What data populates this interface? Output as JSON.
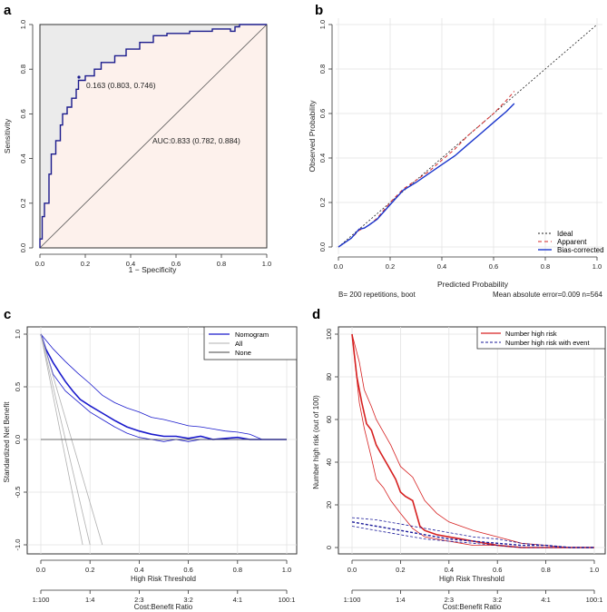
{
  "chart_data": [
    {
      "panel": "a",
      "type": "line",
      "title": "",
      "xlabel": "1 − Specificity",
      "ylabel": "Sensitivity",
      "xlim": [
        0,
        1
      ],
      "ylim": [
        0,
        1
      ],
      "xticks": [
        "0.0",
        "0.2",
        "0.4",
        "0.6",
        "0.8",
        "1.0"
      ],
      "yticks": [
        "0.0",
        "0.2",
        "0.4",
        "0.6",
        "0.8",
        "1.0"
      ],
      "annotations": [
        "0.163 (0.803, 0.746)",
        "AUC:0.833 (0.782, 0.884)"
      ],
      "series": [
        {
          "name": "ROC",
          "color": "#1a1a8c",
          "x": [
            0,
            0,
            0.01,
            0.01,
            0.02,
            0.02,
            0.04,
            0.04,
            0.05,
            0.05,
            0.07,
            0.07,
            0.09,
            0.09,
            0.1,
            0.1,
            0.12,
            0.12,
            0.14,
            0.14,
            0.16,
            0.16,
            0.17,
            0.17,
            0.2,
            0.2,
            0.24,
            0.24,
            0.27,
            0.27,
            0.33,
            0.33,
            0.38,
            0.38,
            0.44,
            0.44,
            0.5,
            0.5,
            0.56,
            0.56,
            0.66,
            0.66,
            0.76,
            0.76,
            0.84,
            0.84,
            0.86,
            0.86,
            0.88,
            0.88,
            0.9,
            0.9,
            1.0
          ],
          "y": [
            0,
            0.04,
            0.04,
            0.14,
            0.14,
            0.2,
            0.2,
            0.33,
            0.33,
            0.42,
            0.42,
            0.48,
            0.48,
            0.55,
            0.55,
            0.6,
            0.6,
            0.63,
            0.63,
            0.67,
            0.67,
            0.71,
            0.71,
            0.75,
            0.75,
            0.77,
            0.77,
            0.8,
            0.8,
            0.83,
            0.83,
            0.86,
            0.86,
            0.89,
            0.89,
            0.92,
            0.92,
            0.95,
            0.95,
            0.96,
            0.96,
            0.97,
            0.97,
            0.98,
            0.98,
            0.97,
            0.97,
            0.99,
            0.99,
            1.0,
            1.0,
            1.0,
            1.0
          ]
        },
        {
          "name": "Reference",
          "color": "#555555",
          "x": [
            0,
            1
          ],
          "y": [
            0,
            1
          ]
        }
      ]
    },
    {
      "panel": "b",
      "type": "line",
      "xlabel": "Predicted Probability",
      "ylabel": "Observed Probability",
      "xlim": [
        0,
        1
      ],
      "ylim": [
        0,
        1
      ],
      "xticks": [
        "0.0",
        "0.2",
        "0.4",
        "0.6",
        "0.8",
        "1.0"
      ],
      "yticks": [
        "0.0",
        "0.2",
        "0.4",
        "0.6",
        "0.8",
        "1.0"
      ],
      "legend": [
        "Ideal",
        "Apparent",
        "Bias-corrected"
      ],
      "footer_left": "B= 200 repetitions, boot",
      "footer_right": "Mean absolute error=0.009 n=564",
      "series": [
        {
          "name": "Ideal",
          "color": "#222222",
          "x": [
            0,
            1
          ],
          "y": [
            0,
            1
          ]
        },
        {
          "name": "Apparent",
          "color": "#d62a2a",
          "x": [
            0,
            0.05,
            0.08,
            0.1,
            0.12,
            0.15,
            0.2,
            0.25,
            0.3,
            0.35,
            0.4,
            0.45,
            0.5,
            0.55,
            0.6,
            0.65,
            0.68
          ],
          "y": [
            0,
            0.04,
            0.075,
            0.085,
            0.1,
            0.13,
            0.2,
            0.26,
            0.3,
            0.34,
            0.39,
            0.44,
            0.5,
            0.55,
            0.6,
            0.66,
            0.7
          ]
        },
        {
          "name": "Bias-corrected",
          "color": "#1a35cc",
          "x": [
            0,
            0.05,
            0.08,
            0.1,
            0.12,
            0.15,
            0.2,
            0.25,
            0.3,
            0.35,
            0.4,
            0.45,
            0.5,
            0.55,
            0.6,
            0.65,
            0.68
          ],
          "y": [
            0,
            0.04,
            0.08,
            0.085,
            0.1,
            0.125,
            0.19,
            0.255,
            0.29,
            0.33,
            0.37,
            0.41,
            0.46,
            0.51,
            0.56,
            0.61,
            0.645
          ]
        }
      ]
    },
    {
      "panel": "c",
      "type": "line",
      "xlabel": "High Risk Threshold",
      "ylabel": "Standardized Net Benefit",
      "secondary_xlabel": "Cost:Benefit Ratio",
      "xlim": [
        0,
        1
      ],
      "ylim": [
        -1,
        1
      ],
      "xticks": [
        "0.0",
        "0.2",
        "0.4",
        "0.6",
        "0.8",
        "1.0"
      ],
      "yticks": [
        "-1.0",
        "-0.5",
        "0.0",
        "0.5",
        "1.0"
      ],
      "secondary_xticks": [
        "1:100",
        "1:4",
        "2:3",
        "3:2",
        "4:1",
        "100:1"
      ],
      "legend": [
        "Nomogram",
        "All",
        "None"
      ],
      "series": [
        {
          "name": "Nomogram",
          "color": "#1a1acc",
          "x": [
            0,
            0.02,
            0.05,
            0.08,
            0.1,
            0.13,
            0.16,
            0.2,
            0.25,
            0.3,
            0.35,
            0.4,
            0.45,
            0.5,
            0.55,
            0.6,
            0.65,
            0.7,
            0.75,
            0.8,
            0.85,
            0.9,
            1.0
          ],
          "y": [
            1.0,
            0.86,
            0.73,
            0.62,
            0.55,
            0.46,
            0.38,
            0.32,
            0.25,
            0.18,
            0.12,
            0.08,
            0.05,
            0.03,
            0.03,
            0.01,
            0.03,
            0.0,
            0.01,
            0.02,
            0.0,
            0.0,
            0.0
          ]
        },
        {
          "name": "Nomogram upper",
          "color": "#1a1acc",
          "x": [
            0,
            0.05,
            0.1,
            0.15,
            0.2,
            0.25,
            0.3,
            0.35,
            0.4,
            0.45,
            0.5,
            0.55,
            0.6,
            0.65,
            0.7,
            0.75,
            0.8,
            0.85,
            0.9
          ],
          "y": [
            1.0,
            0.86,
            0.74,
            0.63,
            0.53,
            0.42,
            0.35,
            0.3,
            0.26,
            0.21,
            0.19,
            0.16,
            0.13,
            0.12,
            0.1,
            0.08,
            0.07,
            0.05,
            0.0
          ]
        },
        {
          "name": "Nomogram lower",
          "color": "#1a1acc",
          "x": [
            0,
            0.05,
            0.1,
            0.15,
            0.2,
            0.25,
            0.3,
            0.35,
            0.4,
            0.45,
            0.5,
            0.55,
            0.6,
            0.65,
            0.7,
            0.75,
            0.8,
            0.85,
            0.9
          ],
          "y": [
            1.0,
            0.62,
            0.46,
            0.36,
            0.26,
            0.19,
            0.12,
            0.06,
            0.02,
            0.0,
            -0.02,
            0.0,
            -0.02,
            0.0,
            0.0,
            0.0,
            0.0,
            0.0,
            0.0
          ]
        },
        {
          "name": "All",
          "color": "#b0b0b0",
          "x": [
            0,
            0.17
          ],
          "y": [
            1.0,
            -1.0
          ]
        },
        {
          "name": "All band a",
          "color": "#b0b0b0",
          "x": [
            0,
            0.2
          ],
          "y": [
            1.0,
            -1.0
          ]
        },
        {
          "name": "All band b",
          "color": "#b0b0b0",
          "x": [
            0,
            0.25
          ],
          "y": [
            1.0,
            -1.0
          ]
        },
        {
          "name": "None",
          "color": "#444444",
          "x": [
            0,
            1
          ],
          "y": [
            0,
            0
          ]
        }
      ]
    },
    {
      "panel": "d",
      "type": "line",
      "xlabel": "High Risk Threshold",
      "ylabel": "Number high risk (out of 100)",
      "secondary_xlabel": "Cost:Benefit Ratio",
      "xlim": [
        0,
        1
      ],
      "ylim": [
        0,
        100
      ],
      "xticks": [
        "0.0",
        "0.2",
        "0.4",
        "0.6",
        "0.8",
        "1.0"
      ],
      "yticks": [
        "0",
        "20",
        "40",
        "60",
        "80",
        "100"
      ],
      "secondary_xticks": [
        "1:100",
        "1:4",
        "2:3",
        "3:2",
        "4:1",
        "100:1"
      ],
      "legend": [
        "Number high risk",
        "Number high risk with event"
      ],
      "series": [
        {
          "name": "Number high risk",
          "color": "#d62020",
          "x": [
            0,
            0.02,
            0.04,
            0.06,
            0.08,
            0.1,
            0.12,
            0.15,
            0.18,
            0.2,
            0.22,
            0.25,
            0.28,
            0.3,
            0.35,
            0.4,
            0.45,
            0.5,
            0.6,
            0.7,
            0.8,
            1.0
          ],
          "y": [
            100,
            80,
            68,
            58,
            55,
            48,
            44,
            38,
            32,
            26,
            24,
            22,
            10,
            8,
            6,
            5,
            4,
            3,
            1,
            0,
            0,
            0
          ]
        },
        {
          "name": "Number high risk upper",
          "color": "#d62020",
          "x": [
            0,
            0.03,
            0.05,
            0.08,
            0.1,
            0.13,
            0.16,
            0.2,
            0.25,
            0.3,
            0.35,
            0.4,
            0.45,
            0.5,
            0.6,
            0.7,
            0.8,
            0.9,
            1.0
          ],
          "y": [
            100,
            87,
            74,
            66,
            60,
            54,
            48,
            38,
            33,
            22,
            16,
            12,
            10,
            8,
            5,
            2,
            1,
            0,
            0
          ]
        },
        {
          "name": "Number high risk lower",
          "color": "#d62020",
          "x": [
            0,
            0.03,
            0.05,
            0.08,
            0.1,
            0.13,
            0.16,
            0.2,
            0.25,
            0.3,
            0.35,
            0.4,
            0.45,
            0.5,
            0.6,
            0.7,
            0.8,
            0.9,
            1.0
          ],
          "y": [
            100,
            68,
            56,
            42,
            32,
            28,
            22,
            16,
            9,
            5,
            4,
            3,
            2,
            1,
            1,
            0,
            0,
            0,
            0
          ]
        },
        {
          "name": "Number high risk with event",
          "color": "#1a1a99",
          "x": [
            0,
            0.1,
            0.2,
            0.3,
            0.4,
            0.5,
            0.6,
            0.7,
            0.8,
            0.9,
            1.0
          ],
          "y": [
            12,
            10,
            8,
            6,
            4,
            3,
            2,
            1,
            1,
            0,
            0
          ]
        },
        {
          "name": "With event upper",
          "color": "#1a1a99",
          "x": [
            0,
            0.1,
            0.2,
            0.3,
            0.4,
            0.5,
            0.6,
            0.7,
            0.8,
            0.9,
            1.0
          ],
          "y": [
            14,
            13,
            11,
            9,
            7,
            5,
            4,
            2,
            1,
            0,
            0
          ]
        },
        {
          "name": "With event lower",
          "color": "#1a1a99",
          "x": [
            0,
            0.1,
            0.2,
            0.3,
            0.4,
            0.5,
            0.6,
            0.7,
            0.8,
            0.9,
            1.0
          ],
          "y": [
            10,
            8,
            6,
            4,
            3,
            2,
            1,
            0,
            0,
            0,
            0
          ]
        }
      ]
    }
  ],
  "panel_letters": [
    "a",
    "b",
    "c",
    "d"
  ]
}
